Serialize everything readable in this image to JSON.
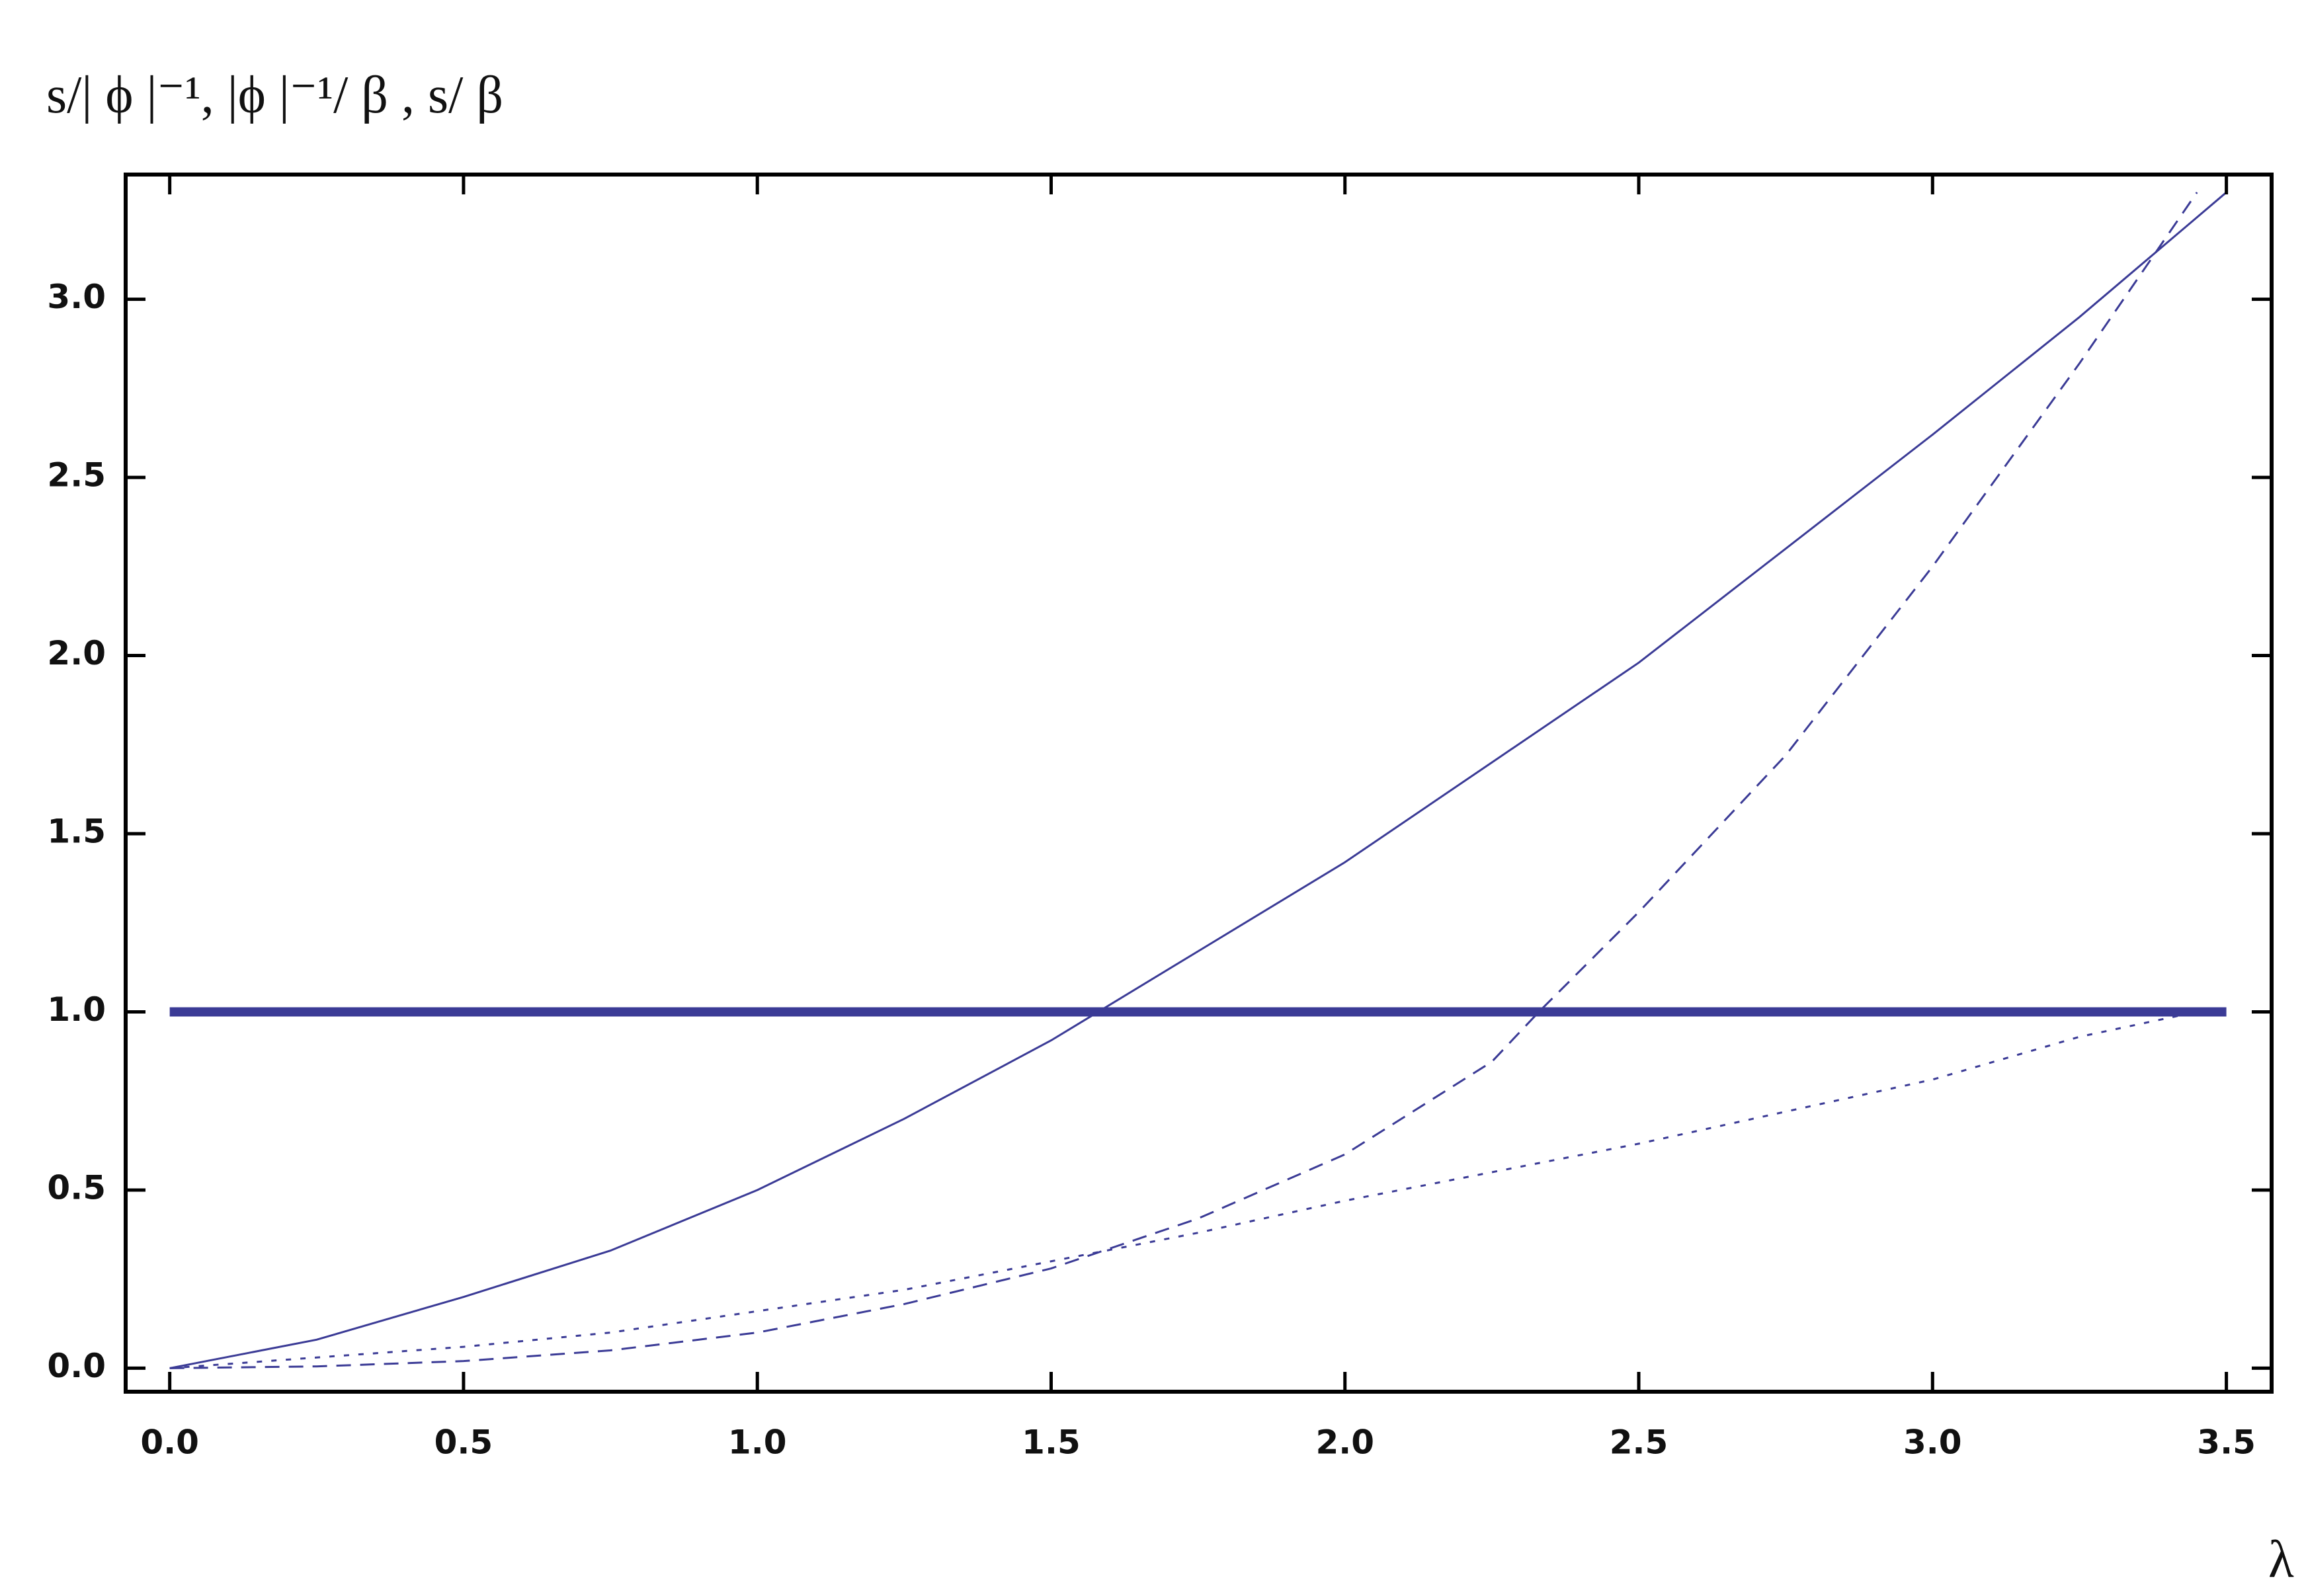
{
  "chart_data": {
    "type": "line",
    "ylabel": "s/| ϕ |⁻¹,  |ϕ |⁻¹/ β ,  s/ β",
    "xlabel": "λ",
    "series": [
      {
        "color": "#3b3b96",
        "style": "solid",
        "width": 3,
        "x": [
          0,
          0.25,
          0.5,
          0.75,
          1.0,
          1.25,
          1.5,
          1.58,
          1.75,
          2.0,
          2.25,
          2.5,
          2.75,
          3.0,
          3.25,
          3.5
        ],
        "values": [
          0,
          0.08,
          0.2,
          0.33,
          0.5,
          0.7,
          0.92,
          1.0,
          1.17,
          1.42,
          1.7,
          1.98,
          2.3,
          2.62,
          2.95,
          3.3
        ]
      },
      {
        "color": "#3b3b96",
        "style": "dashed",
        "width": 3,
        "x": [
          0,
          0.25,
          0.5,
          0.75,
          1.0,
          1.25,
          1.5,
          1.75,
          2.0,
          2.25,
          2.33,
          2.5,
          2.75,
          3.0,
          3.25,
          3.45
        ],
        "values": [
          0,
          0.005,
          0.02,
          0.05,
          0.1,
          0.18,
          0.28,
          0.42,
          0.6,
          0.86,
          1.0,
          1.28,
          1.72,
          2.25,
          2.82,
          3.3
        ]
      },
      {
        "color": "#3b3b96",
        "style": "dotted",
        "width": 3,
        "x": [
          0,
          0.25,
          0.5,
          0.75,
          1.0,
          1.25,
          1.5,
          1.75,
          2.0,
          2.25,
          2.5,
          2.75,
          3.0,
          3.25,
          3.45
        ],
        "values": [
          0,
          0.03,
          0.06,
          0.1,
          0.16,
          0.22,
          0.3,
          0.38,
          0.47,
          0.55,
          0.63,
          0.72,
          0.81,
          0.93,
          1.0
        ]
      },
      {
        "color": "#3b3b96",
        "style": "solid",
        "width": 14,
        "x": [
          0,
          3.5
        ],
        "values": [
          1,
          1
        ]
      }
    ],
    "xlim": [
      -0.075,
      3.577
    ],
    "ylim": [
      -0.066,
      3.35
    ],
    "xticks": [
      {
        "value": 0,
        "label": "0.0"
      },
      0.5,
      {
        "value": 1,
        "label": "1.0"
      },
      1.5,
      {
        "value": 2,
        "label": "2.0"
      },
      2.5,
      {
        "value": 3,
        "label": "3.0"
      },
      3.5
    ],
    "yticks": [
      {
        "value": 0,
        "label": "0.0"
      },
      0.5,
      {
        "value": 1,
        "label": "1.0"
      },
      1.5,
      {
        "value": 2,
        "label": "2.0"
      },
      2.5,
      {
        "value": 3,
        "label": "3.0"
      }
    ],
    "grid": false
  }
}
